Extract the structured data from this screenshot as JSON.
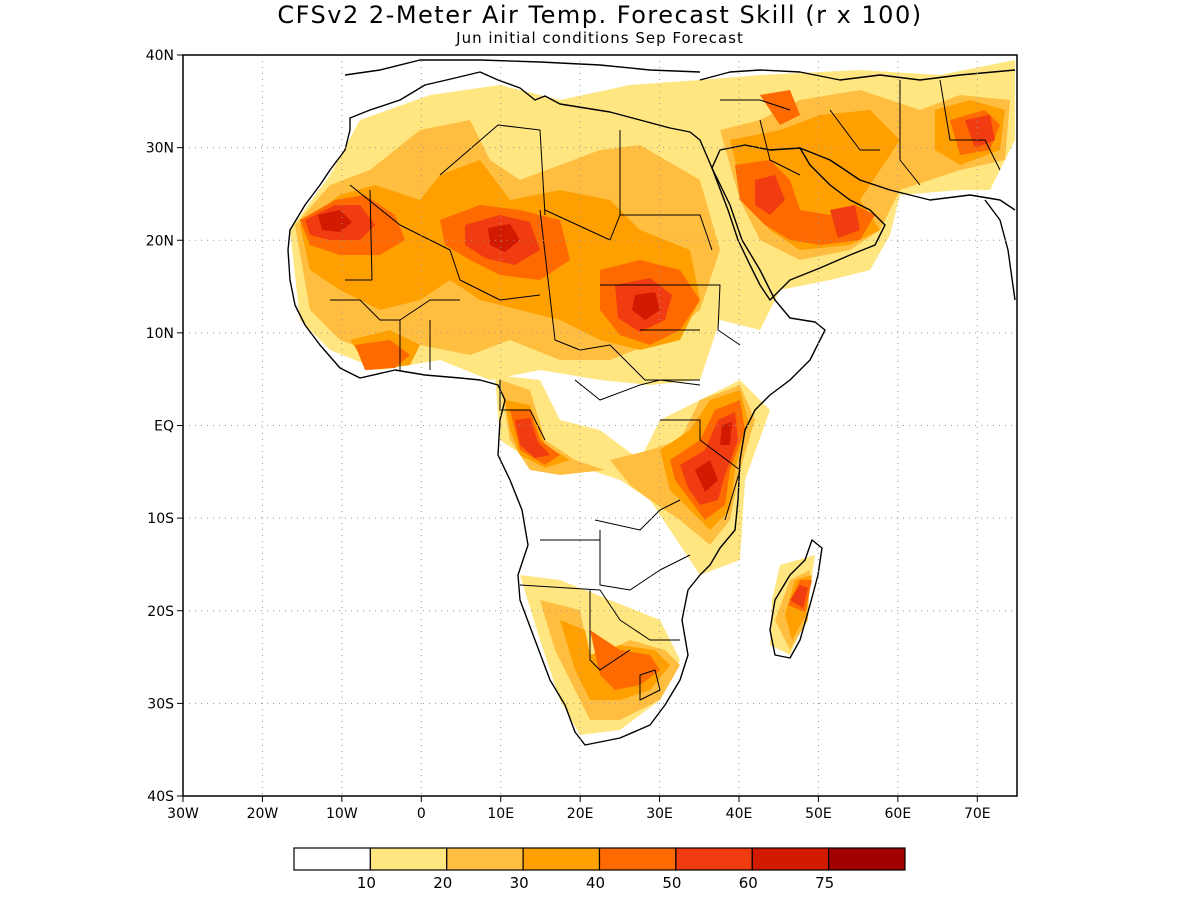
{
  "title": "CFSv2 2-Meter Air Temp. Forecast Skill (r x 100)",
  "subtitle": "Jun initial conditions  Sep Forecast",
  "map": {
    "lon_range": [
      -30,
      75
    ],
    "lat_range": [
      -40,
      40
    ],
    "lat_ticks": [
      {
        "value": 40,
        "label": "40N"
      },
      {
        "value": 30,
        "label": "30N"
      },
      {
        "value": 20,
        "label": "20N"
      },
      {
        "value": 10,
        "label": "10N"
      },
      {
        "value": 0,
        "label": "EQ"
      },
      {
        "value": -10,
        "label": "10S"
      },
      {
        "value": -20,
        "label": "20S"
      },
      {
        "value": -30,
        "label": "30S"
      },
      {
        "value": -40,
        "label": "40S"
      }
    ],
    "lon_ticks": [
      {
        "value": -30,
        "label": "30W"
      },
      {
        "value": -20,
        "label": "20W"
      },
      {
        "value": -10,
        "label": "10W"
      },
      {
        "value": 0,
        "label": "0"
      },
      {
        "value": 10,
        "label": "10E"
      },
      {
        "value": 20,
        "label": "20E"
      },
      {
        "value": 30,
        "label": "30E"
      },
      {
        "value": 40,
        "label": "40E"
      },
      {
        "value": 50,
        "label": "50E"
      },
      {
        "value": 60,
        "label": "60E"
      },
      {
        "value": 70,
        "label": "70E"
      }
    ],
    "grid": true
  },
  "colorbar": {
    "colors": [
      "#ffffff",
      "#ffe680",
      "#ffbe40",
      "#ffa000",
      "#ff6a00",
      "#f03c10",
      "#d21a00",
      "#a00000"
    ],
    "labels": [
      "10",
      "20",
      "30",
      "40",
      "50",
      "60",
      "75"
    ]
  }
}
